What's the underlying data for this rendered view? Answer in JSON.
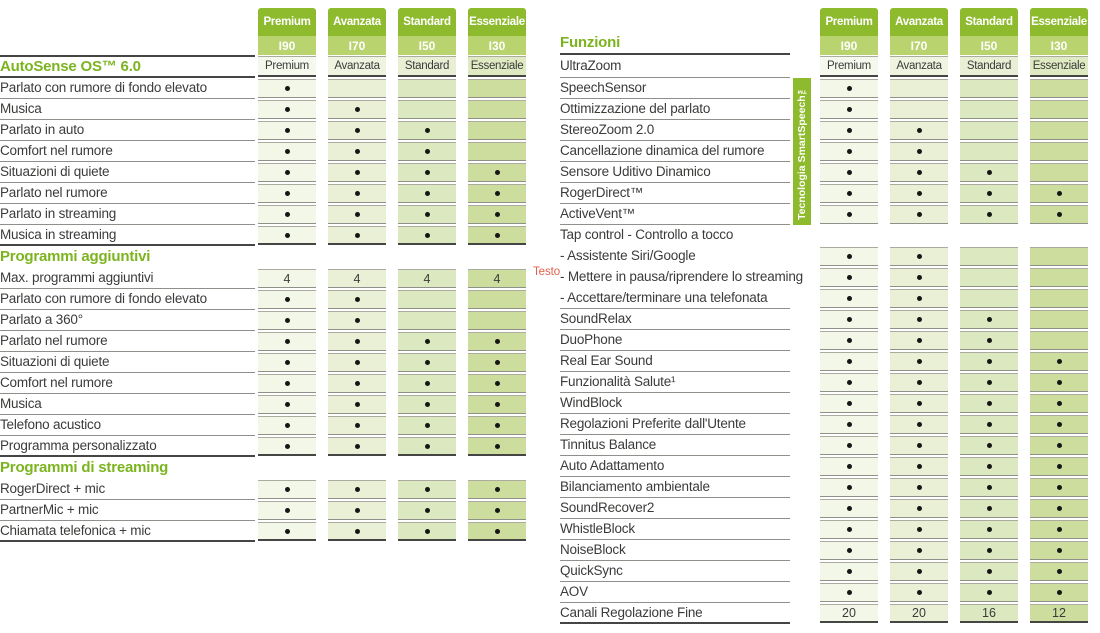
{
  "colors": {
    "header_green": "#8eba2e",
    "header_green_light": "#b9d36e",
    "section_green": "#7cb41f",
    "label_text": "#3b3b3a",
    "dark_line": "#454543",
    "hairline": "#90908b",
    "dot": "#161616",
    "annotation_red": "#e0614e",
    "column_tints": [
      "#f3f7e8",
      "#e9f0d6",
      "#dce8c0",
      "#cddd9d"
    ]
  },
  "tiers": [
    {
      "name": "Premium",
      "model": "I90"
    },
    {
      "name": "Avanzata",
      "model": "I70"
    },
    {
      "name": "Standard",
      "model": "I50"
    },
    {
      "name": "Essenziale",
      "model": "I30"
    }
  ],
  "left_table": {
    "rows": [
      {
        "type": "section",
        "label": "AutoSense OS™ 6.0",
        "cells": "tiers"
      },
      {
        "type": "row",
        "label": "Parlato con rumore di fondo elevato",
        "cells": [
          "dot",
          "",
          "",
          ""
        ]
      },
      {
        "type": "row",
        "label": "Musica",
        "cells": [
          "dot",
          "dot",
          "",
          ""
        ]
      },
      {
        "type": "row",
        "label": "Parlato in auto",
        "cells": [
          "dot",
          "dot",
          "dot",
          ""
        ]
      },
      {
        "type": "row",
        "label": "Comfort nel rumore",
        "cells": [
          "dot",
          "dot",
          "dot",
          ""
        ]
      },
      {
        "type": "row",
        "label": "Situazioni di quiete",
        "cells": [
          "dot",
          "dot",
          "dot",
          "dot"
        ]
      },
      {
        "type": "row",
        "label": "Parlato nel rumore",
        "cells": [
          "dot",
          "dot",
          "dot",
          "dot"
        ]
      },
      {
        "type": "row",
        "label": "Parlato in streaming",
        "cells": [
          "dot",
          "dot",
          "dot",
          "dot"
        ]
      },
      {
        "type": "row",
        "label": "Musica in streaming",
        "cells": [
          "dot",
          "dot",
          "dot",
          "dot"
        ],
        "end": true
      },
      {
        "type": "section",
        "label": "Programmi aggiuntivi",
        "cells": null
      },
      {
        "type": "row",
        "label": "Max. programmi aggiuntivi",
        "cells": [
          "4",
          "4",
          "4",
          "4"
        ]
      },
      {
        "type": "row",
        "label": "Parlato con rumore di fondo elevato",
        "cells": [
          "dot",
          "dot",
          "",
          ""
        ]
      },
      {
        "type": "row",
        "label": "Parlato a 360°",
        "cells": [
          "dot",
          "dot",
          "",
          ""
        ]
      },
      {
        "type": "row",
        "label": "Parlato nel rumore",
        "cells": [
          "dot",
          "dot",
          "dot",
          "dot"
        ]
      },
      {
        "type": "row",
        "label": "Situazioni di quiete",
        "cells": [
          "dot",
          "dot",
          "dot",
          "dot"
        ]
      },
      {
        "type": "row",
        "label": "Comfort nel rumore",
        "cells": [
          "dot",
          "dot",
          "dot",
          "dot"
        ]
      },
      {
        "type": "row",
        "label": "Musica",
        "cells": [
          "dot",
          "dot",
          "dot",
          "dot"
        ]
      },
      {
        "type": "row",
        "label": "Telefono acustico",
        "cells": [
          "dot",
          "dot",
          "dot",
          "dot"
        ]
      },
      {
        "type": "row",
        "label": "Programma personalizzato",
        "cells": [
          "dot",
          "dot",
          "dot",
          "dot"
        ],
        "end": true
      },
      {
        "type": "section",
        "label": "Programmi di streaming",
        "cells": null
      },
      {
        "type": "row",
        "label": "RogerDirect + mic",
        "cells": [
          "dot",
          "dot",
          "dot",
          "dot"
        ]
      },
      {
        "type": "row",
        "label": "PartnerMic + mic",
        "cells": [
          "dot",
          "dot",
          "dot",
          "dot"
        ]
      },
      {
        "type": "row",
        "label": "Chiamata telefonica + mic",
        "cells": [
          "dot",
          "dot",
          "dot",
          "dot"
        ],
        "end": true
      }
    ]
  },
  "right_table": {
    "title": "Funzioni",
    "rows": [
      {
        "type": "row",
        "label": "UltraZoom",
        "cells": "tiers"
      },
      {
        "type": "row",
        "label": "SpeechSensor",
        "cells": [
          "dot",
          "",
          "",
          ""
        ]
      },
      {
        "type": "row",
        "label": "Ottimizzazione del parlato",
        "cells": [
          "dot",
          "",
          "",
          ""
        ]
      },
      {
        "type": "row",
        "label": "StereoZoom 2.0",
        "cells": [
          "dot",
          "dot",
          "",
          ""
        ]
      },
      {
        "type": "row",
        "label": "Cancellazione dinamica del rumore",
        "cells": [
          "dot",
          "dot",
          "",
          ""
        ]
      },
      {
        "type": "row",
        "label": "Sensore Uditivo Dinamico",
        "cells": [
          "dot",
          "dot",
          "dot",
          ""
        ]
      },
      {
        "type": "row",
        "label": "RogerDirect™",
        "cells": [
          "dot",
          "dot",
          "dot",
          "dot"
        ]
      },
      {
        "type": "row",
        "label": "ActiveVent™",
        "cells": [
          "dot",
          "dot",
          "dot",
          "dot"
        ]
      },
      {
        "type": "subheader",
        "label": "Tap control - Controllo a tocco",
        "cells": null,
        "nounderline": true
      },
      {
        "type": "row",
        "label": "- Assistente Siri/Google",
        "cells": [
          "dot",
          "dot",
          "",
          ""
        ],
        "nounderline": true
      },
      {
        "type": "row",
        "label": "- Mettere in pausa/riprendere lo streaming",
        "cells": [
          "dot",
          "dot",
          "",
          ""
        ],
        "nounderline": true
      },
      {
        "type": "row",
        "label": "- Accettare/terminare una telefonata",
        "cells": [
          "dot",
          "dot",
          "",
          ""
        ]
      },
      {
        "type": "row",
        "label": "SoundRelax",
        "cells": [
          "dot",
          "dot",
          "dot",
          ""
        ]
      },
      {
        "type": "row",
        "label": "DuoPhone",
        "cells": [
          "dot",
          "dot",
          "dot",
          ""
        ]
      },
      {
        "type": "row",
        "label": "Real Ear Sound",
        "cells": [
          "dot",
          "dot",
          "dot",
          "dot"
        ]
      },
      {
        "type": "row",
        "label": "Funzionalità Salute¹",
        "cells": [
          "dot",
          "dot",
          "dot",
          "dot"
        ]
      },
      {
        "type": "row",
        "label": "WindBlock",
        "cells": [
          "dot",
          "dot",
          "dot",
          "dot"
        ]
      },
      {
        "type": "row",
        "label": "Regolazioni Preferite dall'Utente",
        "cells": [
          "dot",
          "dot",
          "dot",
          "dot"
        ]
      },
      {
        "type": "row",
        "label": "Tinnitus Balance",
        "cells": [
          "dot",
          "dot",
          "dot",
          "dot"
        ]
      },
      {
        "type": "row",
        "label": "Auto Adattamento",
        "cells": [
          "dot",
          "dot",
          "dot",
          "dot"
        ]
      },
      {
        "type": "row",
        "label": "Bilanciamento ambientale",
        "cells": [
          "dot",
          "dot",
          "dot",
          "dot"
        ]
      },
      {
        "type": "row",
        "label": "SoundRecover2",
        "cells": [
          "dot",
          "dot",
          "dot",
          "dot"
        ]
      },
      {
        "type": "row",
        "label": "WhistleBlock",
        "cells": [
          "dot",
          "dot",
          "dot",
          "dot"
        ]
      },
      {
        "type": "row",
        "label": "NoiseBlock",
        "cells": [
          "dot",
          "dot",
          "dot",
          "dot"
        ]
      },
      {
        "type": "row",
        "label": "QuickSync",
        "cells": [
          "dot",
          "dot",
          "dot",
          "dot"
        ]
      },
      {
        "type": "row",
        "label": "AOV",
        "cells": [
          "dot",
          "dot",
          "dot",
          "dot"
        ]
      },
      {
        "type": "row",
        "label": "Canali Regolazione Fine",
        "cells": [
          "20",
          "20",
          "16",
          "12"
        ],
        "end": true
      }
    ]
  },
  "annotations": {
    "testo": "Testo",
    "smartspeech": "Tecnologia SmartSpeech™"
  }
}
